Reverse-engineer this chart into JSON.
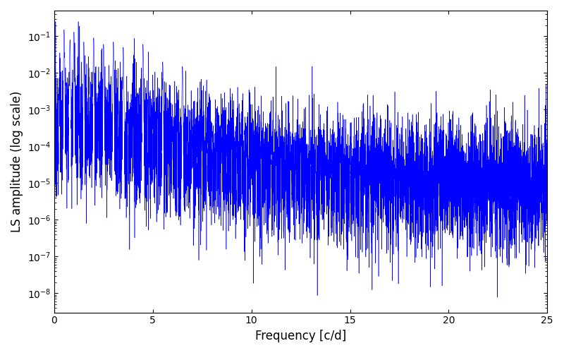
{
  "xlabel": "Frequency [c/d]",
  "ylabel": "LS amplitude (log scale)",
  "xlim": [
    0,
    25
  ],
  "ylim": [
    3e-09,
    0.5
  ],
  "line_color": "#0000ff",
  "background_color": "#ffffff",
  "figsize": [
    8.0,
    5.0
  ],
  "dpi": 100,
  "n_frequencies": 8000,
  "freq_max": 25.0,
  "xticks": [
    0,
    5,
    10,
    15,
    20,
    25
  ]
}
